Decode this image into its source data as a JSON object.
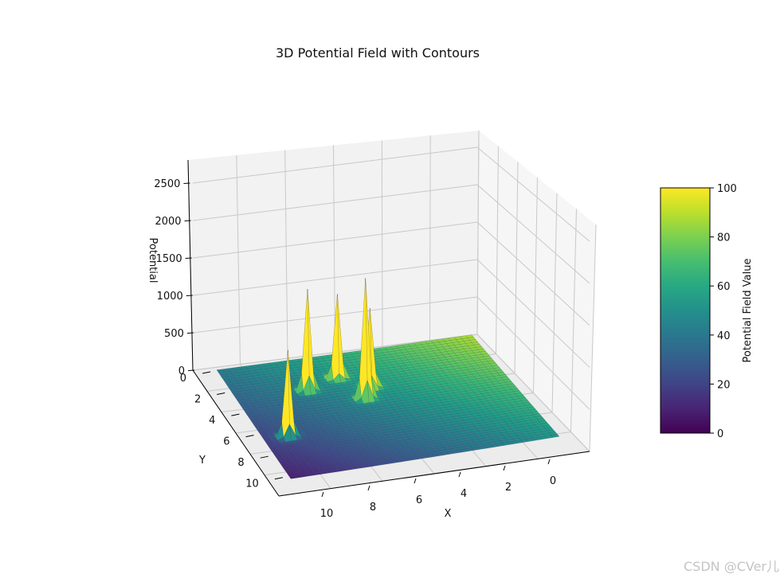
{
  "chart_data": {
    "type": "surface3d",
    "title": "3D Potential Field with Contours",
    "xlabel": "X",
    "ylabel": "Y",
    "zlabel": "Potential",
    "xlim": [
      0,
      11
    ],
    "ylim": [
      0,
      11
    ],
    "zlim": [
      0,
      2700
    ],
    "x_ticks": [
      0,
      2,
      4,
      6,
      8,
      10
    ],
    "y_ticks": [
      0,
      2,
      4,
      6,
      8,
      10
    ],
    "z_ticks": [
      0,
      500,
      1000,
      1500,
      2000,
      2500
    ],
    "colormap": "viridis",
    "colorbar": {
      "label": "Potential Field Value",
      "range": [
        0,
        100
      ],
      "ticks": [
        0,
        20,
        40,
        60,
        80,
        100
      ]
    },
    "surface": {
      "base_description": "attractive potential increasing with distance from goal near x=11, y=11",
      "peaks": [
        {
          "x": 6.5,
          "y": 2.2,
          "height": 1200
        },
        {
          "x": 5.5,
          "y": 3.5,
          "height": 1050
        },
        {
          "x": 6.0,
          "y": 4.5,
          "height": 1600
        },
        {
          "x": 8.0,
          "y": 3.0,
          "height": 1350
        },
        {
          "x": 10.0,
          "y": 7.0,
          "height": 1150
        }
      ]
    }
  },
  "watermark": "CSDN @CVer儿"
}
